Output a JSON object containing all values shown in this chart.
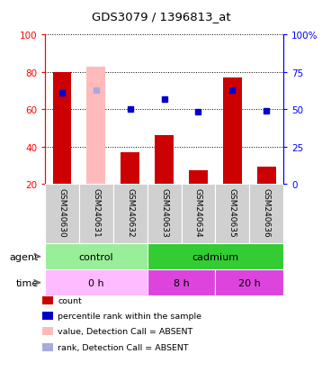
{
  "title": "GDS3079 / 1396813_at",
  "samples": [
    "GSM240630",
    "GSM240631",
    "GSM240632",
    "GSM240633",
    "GSM240634",
    "GSM240635",
    "GSM240636"
  ],
  "bar_heights": [
    80,
    83,
    37,
    46,
    27,
    77,
    29
  ],
  "bar_colors": [
    "#cc0000",
    "#ffbbbb",
    "#cc0000",
    "#cc0000",
    "#cc0000",
    "#cc0000",
    "#cc0000"
  ],
  "dot_y_right": [
    61,
    63,
    50,
    57,
    48,
    63,
    49
  ],
  "dot_colors": [
    "#0000cc",
    "#aaaadd",
    "#0000cc",
    "#0000cc",
    "#0000cc",
    "#0000cc",
    "#0000cc"
  ],
  "ylim_left": [
    20,
    100
  ],
  "yticks_left": [
    20,
    40,
    60,
    80,
    100
  ],
  "yticks_right": [
    0,
    25,
    50,
    75,
    100
  ],
  "ytick_labels_right": [
    "0",
    "25",
    "50",
    "75",
    "100%"
  ],
  "agent_groups": [
    {
      "label": "control",
      "start": 0,
      "end": 3,
      "color": "#99ee99"
    },
    {
      "label": "cadmium",
      "start": 3,
      "end": 7,
      "color": "#33cc33"
    }
  ],
  "time_colors": [
    "#ffbbff",
    "#dd44dd",
    "#dd44dd"
  ],
  "time_groups": [
    {
      "label": "0 h",
      "start": 0,
      "end": 3
    },
    {
      "label": "8 h",
      "start": 3,
      "end": 5
    },
    {
      "label": "20 h",
      "start": 5,
      "end": 7
    }
  ],
  "legend_items": [
    {
      "color": "#cc0000",
      "label": "count"
    },
    {
      "color": "#0000cc",
      "label": "percentile rank within the sample"
    },
    {
      "color": "#ffbbbb",
      "label": "value, Detection Call = ABSENT"
    },
    {
      "color": "#aaaadd",
      "label": "rank, Detection Call = ABSENT"
    }
  ]
}
